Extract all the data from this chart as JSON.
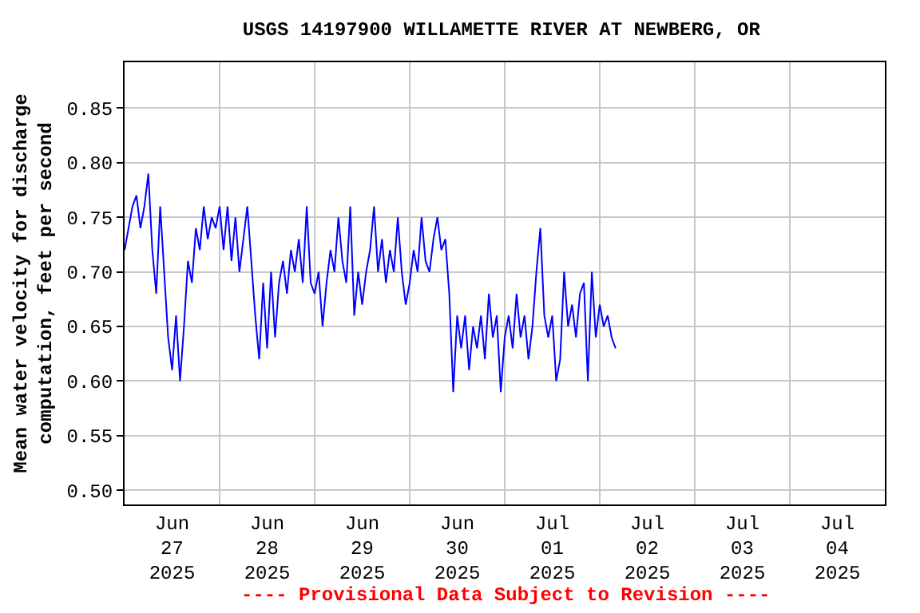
{
  "chart_data": {
    "type": "line",
    "title": "USGS 14197900 WILLAMETTE RIVER AT NEWBERG, OR",
    "ylabel": "Mean water velocity for discharge\ncomputation, feet per second",
    "annotations": [
      "---- Provisional Data Subject to Revision ----"
    ],
    "x": [
      "2025-06-27T00:00",
      "2025-06-27T01:00",
      "2025-06-27T02:00",
      "2025-06-27T03:00",
      "2025-06-27T04:00",
      "2025-06-27T05:00",
      "2025-06-27T06:00",
      "2025-06-27T07:00",
      "2025-06-27T08:00",
      "2025-06-27T09:00",
      "2025-06-27T10:00",
      "2025-06-27T11:00",
      "2025-06-27T12:00",
      "2025-06-27T13:00",
      "2025-06-27T14:00",
      "2025-06-27T15:00",
      "2025-06-27T16:00",
      "2025-06-27T17:00",
      "2025-06-27T18:00",
      "2025-06-27T19:00",
      "2025-06-27T20:00",
      "2025-06-27T21:00",
      "2025-06-27T22:00",
      "2025-06-27T23:00",
      "2025-06-28T00:00",
      "2025-06-28T01:00",
      "2025-06-28T02:00",
      "2025-06-28T03:00",
      "2025-06-28T04:00",
      "2025-06-28T05:00",
      "2025-06-28T06:00",
      "2025-06-28T07:00",
      "2025-06-28T08:00",
      "2025-06-28T09:00",
      "2025-06-28T10:00",
      "2025-06-28T11:00",
      "2025-06-28T12:00",
      "2025-06-28T13:00",
      "2025-06-28T14:00",
      "2025-06-28T15:00",
      "2025-06-28T16:00",
      "2025-06-28T17:00",
      "2025-06-28T18:00",
      "2025-06-28T19:00",
      "2025-06-28T20:00",
      "2025-06-28T21:00",
      "2025-06-28T22:00",
      "2025-06-28T23:00",
      "2025-06-29T00:00",
      "2025-06-29T01:00",
      "2025-06-29T02:00",
      "2025-06-29T03:00",
      "2025-06-29T04:00",
      "2025-06-29T05:00",
      "2025-06-29T06:00",
      "2025-06-29T07:00",
      "2025-06-29T08:00",
      "2025-06-29T09:00",
      "2025-06-29T10:00",
      "2025-06-29T11:00",
      "2025-06-29T12:00",
      "2025-06-29T13:00",
      "2025-06-29T14:00",
      "2025-06-29T15:00",
      "2025-06-29T16:00",
      "2025-06-29T17:00",
      "2025-06-29T18:00",
      "2025-06-29T19:00",
      "2025-06-29T20:00",
      "2025-06-29T21:00",
      "2025-06-29T22:00",
      "2025-06-29T23:00",
      "2025-06-30T00:00",
      "2025-06-30T01:00",
      "2025-06-30T02:00",
      "2025-06-30T03:00",
      "2025-06-30T04:00",
      "2025-06-30T05:00",
      "2025-06-30T06:00",
      "2025-06-30T07:00",
      "2025-06-30T08:00",
      "2025-06-30T09:00",
      "2025-06-30T10:00",
      "2025-06-30T11:00",
      "2025-06-30T12:00",
      "2025-06-30T13:00",
      "2025-06-30T14:00",
      "2025-06-30T15:00",
      "2025-06-30T16:00",
      "2025-06-30T17:00",
      "2025-06-30T18:00",
      "2025-06-30T19:00",
      "2025-06-30T20:00",
      "2025-06-30T21:00",
      "2025-06-30T22:00",
      "2025-06-30T23:00",
      "2025-07-01T00:00",
      "2025-07-01T01:00",
      "2025-07-01T02:00",
      "2025-07-01T03:00",
      "2025-07-01T04:00",
      "2025-07-01T05:00",
      "2025-07-01T06:00",
      "2025-07-01T07:00",
      "2025-07-01T08:00",
      "2025-07-01T09:00",
      "2025-07-01T10:00",
      "2025-07-01T11:00",
      "2025-07-01T12:00",
      "2025-07-01T13:00",
      "2025-07-01T14:00",
      "2025-07-01T15:00",
      "2025-07-01T16:00",
      "2025-07-01T17:00",
      "2025-07-01T18:00",
      "2025-07-01T19:00",
      "2025-07-01T20:00",
      "2025-07-01T21:00",
      "2025-07-01T22:00",
      "2025-07-01T23:00",
      "2025-07-02T00:00",
      "2025-07-02T01:00",
      "2025-07-02T02:00",
      "2025-07-02T03:00",
      "2025-07-02T04:00"
    ],
    "series": [
      {
        "color": "#0000ff",
        "values": [
          0.72,
          0.74,
          0.76,
          0.77,
          0.74,
          0.76,
          0.79,
          0.72,
          0.68,
          0.76,
          0.7,
          0.64,
          0.61,
          0.66,
          0.6,
          0.65,
          0.71,
          0.69,
          0.74,
          0.72,
          0.76,
          0.73,
          0.75,
          0.74,
          0.76,
          0.72,
          0.76,
          0.71,
          0.75,
          0.7,
          0.73,
          0.76,
          0.71,
          0.66,
          0.62,
          0.69,
          0.63,
          0.7,
          0.64,
          0.69,
          0.71,
          0.68,
          0.72,
          0.7,
          0.73,
          0.69,
          0.76,
          0.69,
          0.68,
          0.7,
          0.65,
          0.69,
          0.72,
          0.7,
          0.75,
          0.71,
          0.69,
          0.76,
          0.66,
          0.7,
          0.67,
          0.7,
          0.72,
          0.76,
          0.7,
          0.73,
          0.69,
          0.72,
          0.7,
          0.75,
          0.7,
          0.67,
          0.69,
          0.72,
          0.7,
          0.75,
          0.71,
          0.7,
          0.73,
          0.75,
          0.72,
          0.73,
          0.68,
          0.59,
          0.66,
          0.63,
          0.66,
          0.61,
          0.65,
          0.63,
          0.66,
          0.62,
          0.68,
          0.64,
          0.66,
          0.59,
          0.64,
          0.66,
          0.63,
          0.68,
          0.64,
          0.66,
          0.62,
          0.65,
          0.7,
          0.74,
          0.66,
          0.64,
          0.66,
          0.6,
          0.62,
          0.7,
          0.65,
          0.67,
          0.64,
          0.68,
          0.69,
          0.6,
          0.7,
          0.64,
          0.67,
          0.65,
          0.66,
          0.64,
          0.63
        ]
      }
    ],
    "xlim": [
      "2025-06-27T00:00",
      "2025-07-05T00:00"
    ],
    "xticks": [
      {
        "value": "2025-06-27T00:00",
        "label": null
      },
      {
        "value": "2025-06-27T12:00",
        "label": "Jun\n27\n2025"
      },
      {
        "value": "2025-06-28T00:00",
        "label": null
      },
      {
        "value": "2025-06-28T12:00",
        "label": "Jun\n28\n2025"
      },
      {
        "value": "2025-06-29T00:00",
        "label": null
      },
      {
        "value": "2025-06-29T12:00",
        "label": "Jun\n29\n2025"
      },
      {
        "value": "2025-06-30T00:00",
        "label": null
      },
      {
        "value": "2025-06-30T12:00",
        "label": "Jun\n30\n2025"
      },
      {
        "value": "2025-07-01T00:00",
        "label": null
      },
      {
        "value": "2025-07-01T12:00",
        "label": "Jul\n01\n2025"
      },
      {
        "value": "2025-07-02T00:00",
        "label": null
      },
      {
        "value": "2025-07-02T12:00",
        "label": "Jul\n02\n2025"
      },
      {
        "value": "2025-07-03T00:00",
        "label": null
      },
      {
        "value": "2025-07-03T12:00",
        "label": "Jul\n03\n2025"
      },
      {
        "value": "2025-07-04T00:00",
        "label": null
      },
      {
        "value": "2025-07-04T12:00",
        "label": "Jul\n04\n2025"
      }
    ],
    "ylim": [
      0.487,
      0.892
    ],
    "yticks": [
      {
        "value": 0.5,
        "label": "0.50"
      },
      {
        "value": 0.55,
        "label": "0.55"
      },
      {
        "value": 0.6,
        "label": "0.60"
      },
      {
        "value": 0.65,
        "label": "0.65"
      },
      {
        "value": 0.7,
        "label": "0.70"
      },
      {
        "value": 0.75,
        "label": "0.75"
      },
      {
        "value": 0.8,
        "label": "0.80"
      },
      {
        "value": 0.85,
        "label": "0.85"
      }
    ],
    "grid": true,
    "legend": false
  }
}
